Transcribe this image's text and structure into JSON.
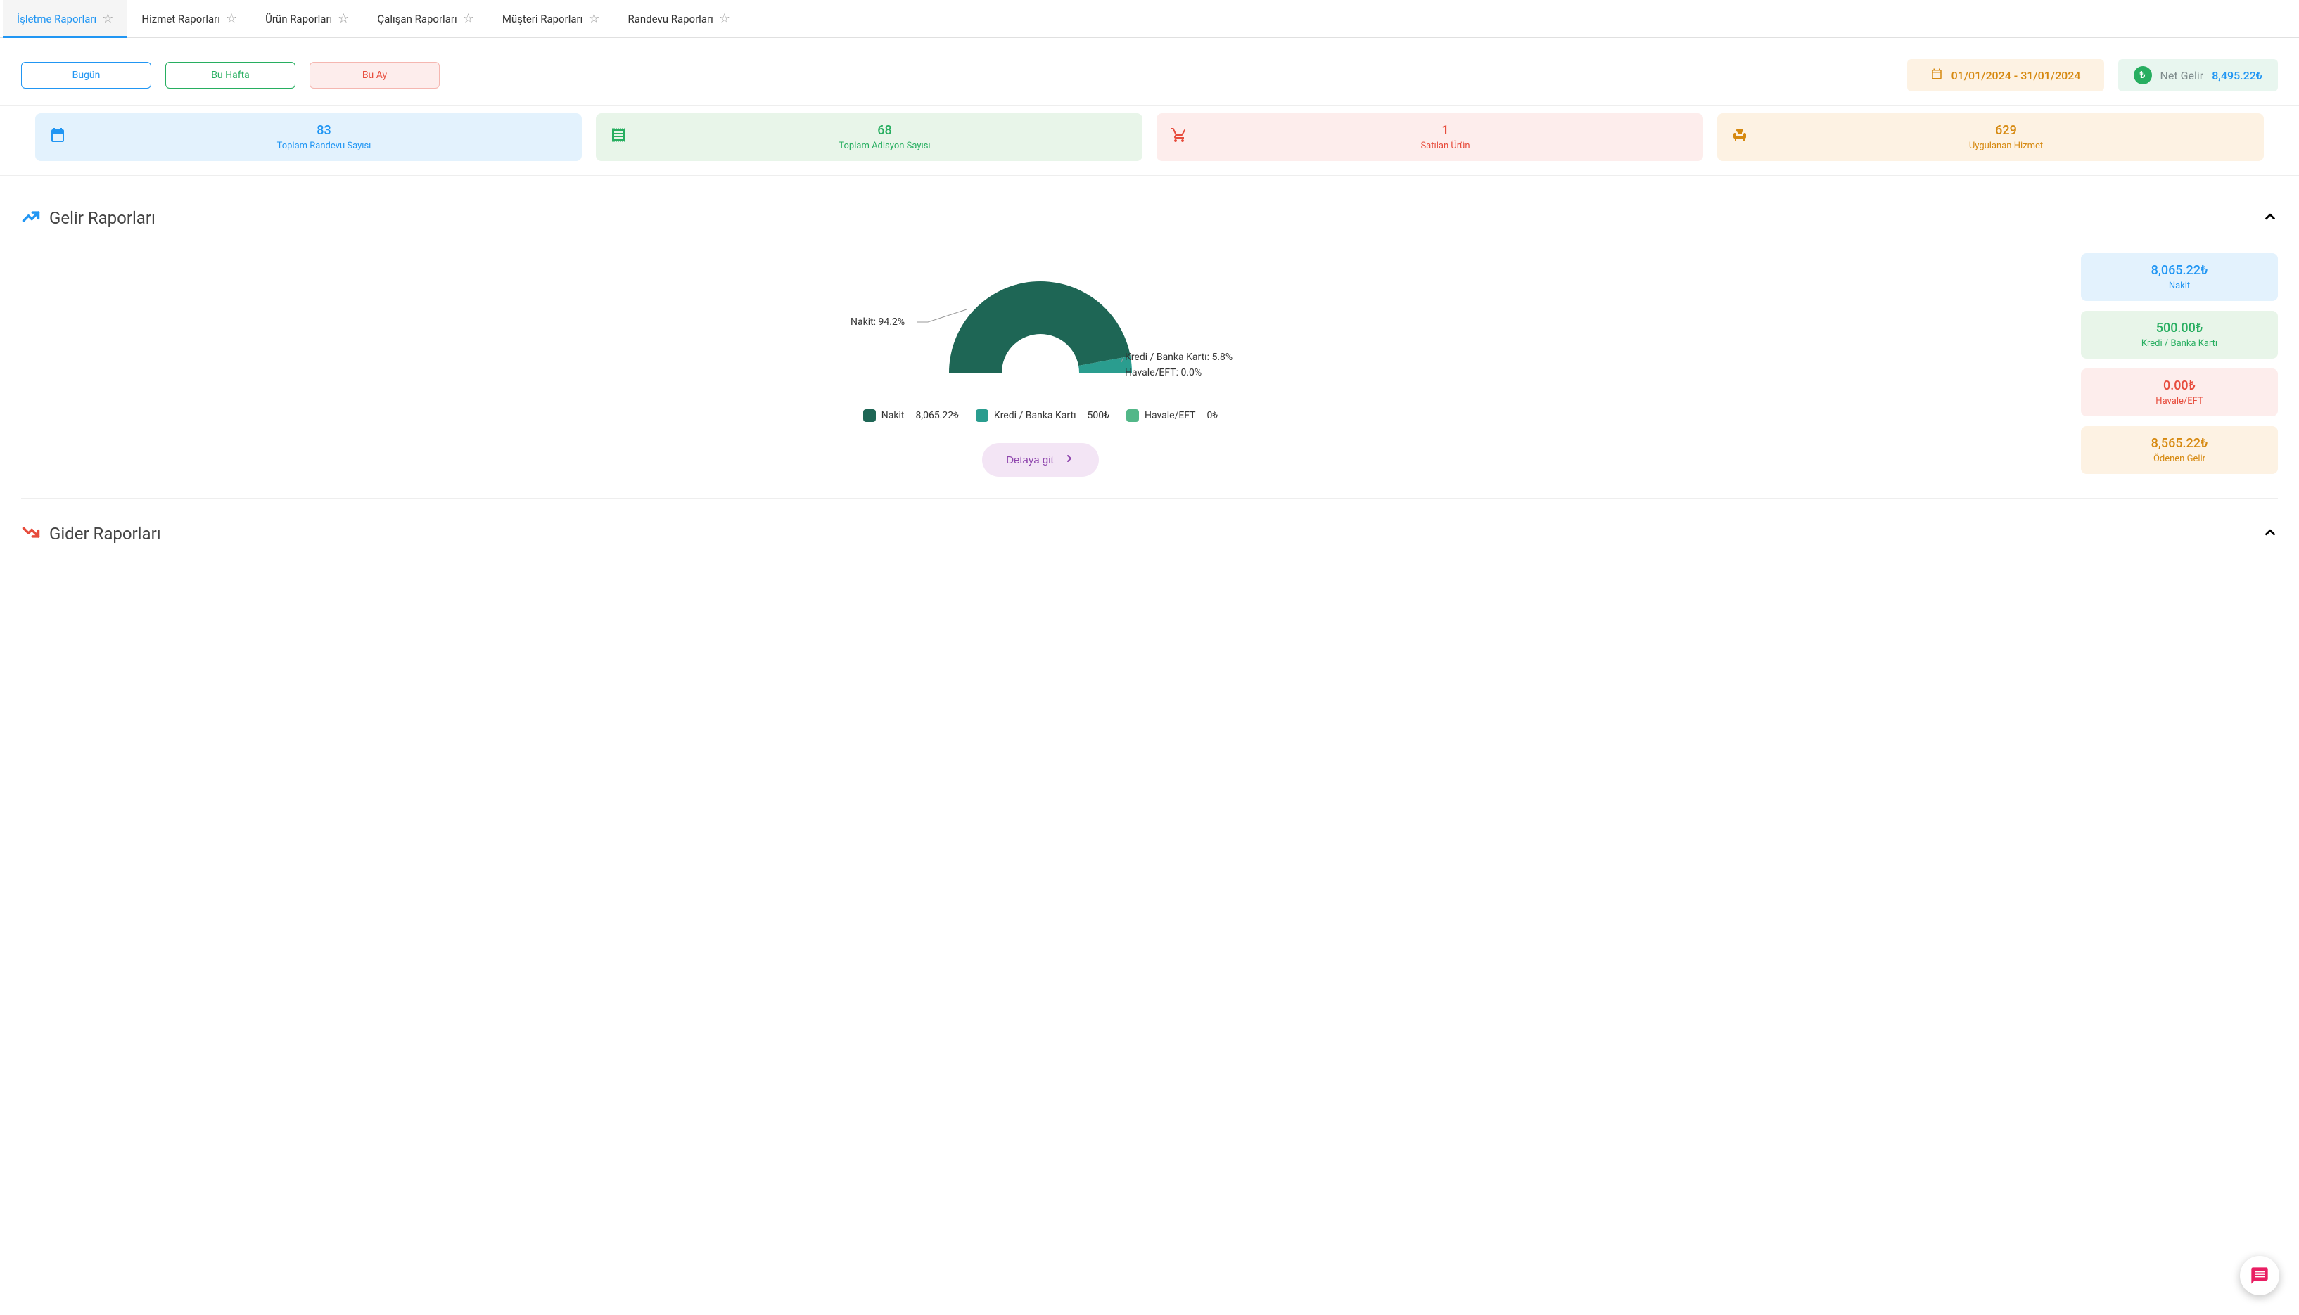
{
  "tabs": [
    {
      "label": "İşletme Raporları",
      "active": true
    },
    {
      "label": "Hizmet Raporları",
      "active": false
    },
    {
      "label": "Ürün Raporları",
      "active": false
    },
    {
      "label": "Çalışan Raporları",
      "active": false
    },
    {
      "label": "Müşteri Raporları",
      "active": false
    },
    {
      "label": "Randevu Raporları",
      "active": false
    }
  ],
  "range_buttons": [
    {
      "label": "Bugün",
      "border": "#2196f3",
      "color": "#2196f3",
      "bg": "#ffffff"
    },
    {
      "label": "Bu Hafta",
      "border": "#27ae60",
      "color": "#27ae60",
      "bg": "#ffffff"
    },
    {
      "label": "Bu Ay",
      "border": "#f5b7b1",
      "color": "#e74c3c",
      "bg": "#fdedec"
    }
  ],
  "date_range": {
    "text": "01/01/2024 - 31/01/2024",
    "bg": "#fdf2e3",
    "color": "#d68910",
    "icon": "📅"
  },
  "net_income": {
    "label": "Net Gelir",
    "value": "8,495.22₺",
    "bg": "#e8f6ef",
    "label_color": "#7f8c8d",
    "value_color": "#2196f3",
    "badge_bg": "#27ae60",
    "badge_text": "₺"
  },
  "stats": [
    {
      "value": "83",
      "label": "Toplam Randevu Sayısı",
      "bg": "#e3f2fd",
      "color": "#2196f3",
      "icon": "calendar"
    },
    {
      "value": "68",
      "label": "Toplam Adisyon Sayısı",
      "bg": "#e8f5e9",
      "color": "#27ae60",
      "icon": "receipt"
    },
    {
      "value": "1",
      "label": "Satılan Ürün",
      "bg": "#fdedec",
      "color": "#e74c3c",
      "icon": "cart"
    },
    {
      "value": "629",
      "label": "Uygulanan Hizmet",
      "bg": "#fdf2e3",
      "color": "#d68910",
      "icon": "chair"
    }
  ],
  "income_section": {
    "title": "Gelir Raporları",
    "icon_color": "#2196f3",
    "chart": {
      "type": "semi-donut",
      "slices": [
        {
          "name": "Nakit",
          "value": 8065.22,
          "pct": 94.2,
          "color": "#1e6655",
          "callout": "Nakit: 94.2%"
        },
        {
          "name": "Kredi / Banka Kartı",
          "value": 500.0,
          "pct": 5.8,
          "color": "#2a9d8f",
          "callout": "Kredi / Banka Kartı: 5.8%"
        },
        {
          "name": "Havale/EFT",
          "value": 0.0,
          "pct": 0.0,
          "color": "#52b788",
          "callout": "Havale/EFT: 0.0%"
        }
      ],
      "legend": [
        {
          "swatch": "#1e6655",
          "name": "Nakit",
          "amount": "8,065.22₺"
        },
        {
          "swatch": "#2a9d8f",
          "name": "Kredi / Banka Kartı",
          "amount": "500₺"
        },
        {
          "swatch": "#52b788",
          "name": "Havale/EFT",
          "amount": "0₺"
        }
      ]
    },
    "detail_button": {
      "label": "Detaya git",
      "bg": "#f3e5f5",
      "color": "#8e44ad"
    },
    "side_cards": [
      {
        "value": "8,065.22₺",
        "label": "Nakit",
        "bg": "#e3f2fd",
        "color": "#2196f3"
      },
      {
        "value": "500.00₺",
        "label": "Kredi / Banka Kartı",
        "bg": "#e8f5e9",
        "color": "#27ae60"
      },
      {
        "value": "0.00₺",
        "label": "Havale/EFT",
        "bg": "#fdedec",
        "color": "#e74c3c"
      },
      {
        "value": "8,565.22₺",
        "label": "Ödenen Gelir",
        "bg": "#fdf2e3",
        "color": "#d68910"
      }
    ]
  },
  "expense_section": {
    "title": "Gider Raporları",
    "icon_color": "#e74c3c"
  },
  "fab_color": "#e91e63"
}
